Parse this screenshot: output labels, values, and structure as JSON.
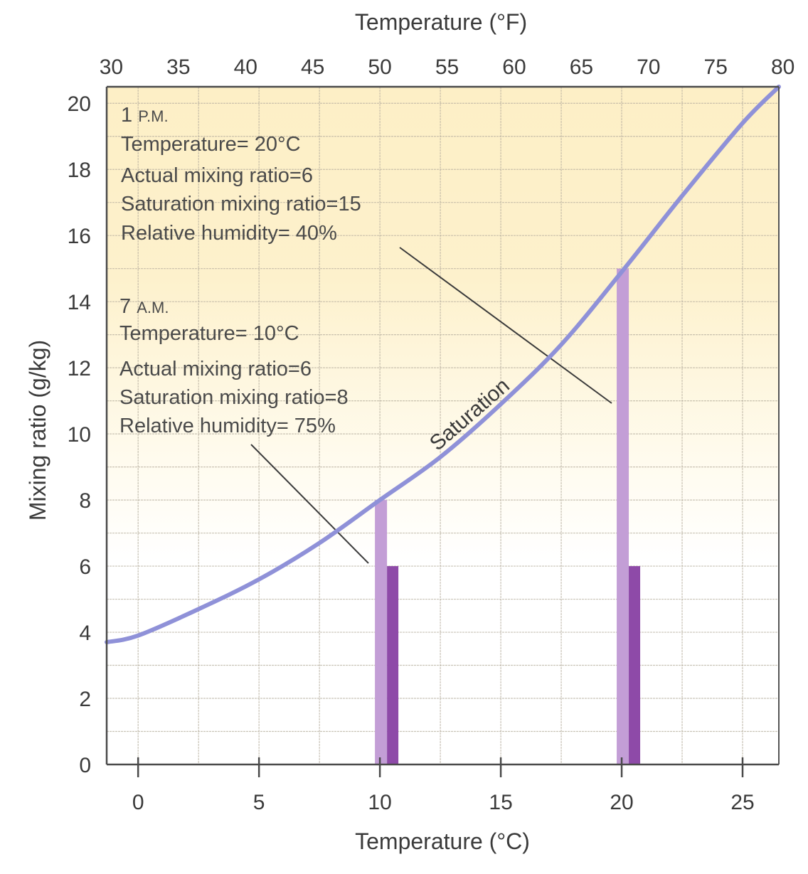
{
  "chart_data": {
    "type": "bar",
    "title": "",
    "xlabel": "Temperature (°C)",
    "x2label": "Temperature (°F)",
    "ylabel": "Mixing ratio (g/kg)",
    "xlim": [
      -1.3,
      26.5
    ],
    "ylim": [
      0,
      20.5
    ],
    "grid": true,
    "x_ticks": [
      "0",
      "5",
      "10",
      "15",
      "20",
      "25"
    ],
    "x_tick_values": [
      0,
      5,
      10,
      15,
      20,
      25
    ],
    "x2_ticks": [
      "30",
      "35",
      "40",
      "45",
      "50",
      "55",
      "60",
      "65",
      "70",
      "75",
      "80"
    ],
    "x2_tick_values_f": [
      30,
      35,
      40,
      45,
      50,
      55,
      60,
      65,
      70,
      75,
      80
    ],
    "y_ticks": [
      "0",
      "2",
      "4",
      "6",
      "8",
      "10",
      "12",
      "14",
      "16",
      "18",
      "20"
    ],
    "y_tick_values": [
      0,
      2,
      4,
      6,
      8,
      10,
      12,
      14,
      16,
      18,
      20
    ],
    "saturation_curve": {
      "name": "Saturation",
      "x": [
        -1.3,
        0,
        2.5,
        5,
        7.5,
        10,
        12.5,
        15,
        17.5,
        20,
        22.5,
        25,
        26.5
      ],
      "y": [
        3.7,
        3.9,
        4.7,
        5.6,
        6.7,
        8.0,
        9.3,
        10.9,
        12.7,
        14.9,
        17.2,
        19.4,
        20.5
      ],
      "color": "#8f91d8"
    },
    "series": [
      {
        "name": "Saturation mixing ratio",
        "x": [
          10,
          20
        ],
        "values": [
          8,
          15
        ],
        "color": "#c39ed6"
      },
      {
        "name": "Actual mixing ratio",
        "x": [
          10,
          20
        ],
        "values": [
          6,
          6
        ],
        "color": "#8e4aa8"
      }
    ],
    "annotations": {
      "pm": {
        "time_number": "1",
        "time_suffix": "P.M.",
        "temperature": "Temperature= 20°C",
        "actual": "Actual mixing ratio=6",
        "saturation": "Saturation mixing ratio=15",
        "rh": "Relative humidity= 40%"
      },
      "am": {
        "time_number": "7",
        "time_suffix": "A.M.",
        "temperature": "Temperature= 10°C",
        "actual": "Actual mixing ratio=6",
        "saturation": "Saturation mixing ratio=8",
        "rh": "Relative humidity= 75%"
      }
    },
    "colors": {
      "background_top": "#fdf0c8",
      "grid": "#b8b0a0",
      "axis": "#4a4a4a",
      "text": "#3b3b3b"
    }
  }
}
